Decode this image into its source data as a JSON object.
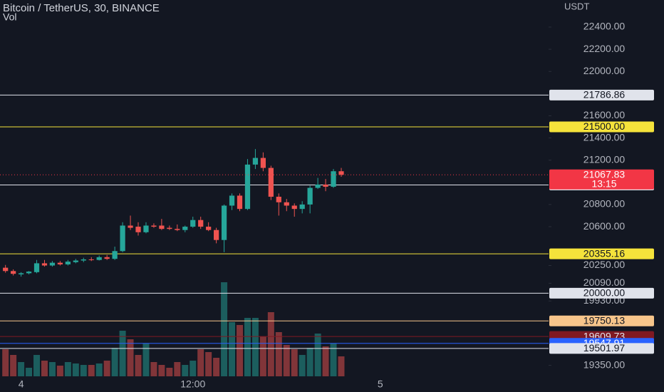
{
  "chart_data": {
    "type": "candlestick",
    "title": "Bitcoin / TetherUS, 30, BINANCE",
    "volume_label": "Vol",
    "axis_unit": "USDT",
    "up_color": "#26a69a",
    "down_color": "#ef5350",
    "open": [
      20230,
      20200,
      20170,
      20180,
      20190,
      20270,
      20250,
      20275,
      20260,
      20280,
      20295,
      20305,
      20300,
      20325,
      20310,
      20380,
      20610,
      20600,
      20550,
      20610,
      20610,
      20590,
      20580,
      20570,
      20600,
      20660,
      20600,
      20570,
      20480,
      20790,
      20880,
      20760,
      21160,
      21220,
      21130,
      20870,
      20820,
      20790,
      20760,
      20800,
      20950,
      20980,
      20960,
      21100
    ],
    "high": [
      20255,
      20215,
      20190,
      20200,
      20300,
      20300,
      20290,
      20290,
      20300,
      20310,
      20320,
      20325,
      20340,
      20345,
      20420,
      20640,
      20700,
      20640,
      20640,
      20630,
      20670,
      20610,
      20620,
      20610,
      20690,
      20690,
      20640,
      20590,
      20800,
      20900,
      20900,
      21210,
      21300,
      21270,
      21150,
      20900,
      20850,
      20810,
      20830,
      20970,
      21040,
      21030,
      21120,
      21130
    ],
    "low": [
      20185,
      20160,
      20150,
      20170,
      20180,
      20240,
      20240,
      20250,
      20250,
      20270,
      20280,
      20290,
      20295,
      20300,
      20300,
      20370,
      20570,
      20520,
      20540,
      20590,
      20570,
      20570,
      20560,
      20550,
      20590,
      20580,
      20560,
      20450,
      20370,
      20750,
      20740,
      20750,
      21120,
      21100,
      20840,
      20700,
      20740,
      20690,
      20720,
      20720,
      20940,
      20920,
      20950,
      21050
    ],
    "close": [
      20200,
      20175,
      20180,
      20195,
      20270,
      20250,
      20275,
      20260,
      20285,
      20295,
      20305,
      20300,
      20325,
      20310,
      20380,
      20610,
      20590,
      20550,
      20610,
      20600,
      20580,
      20580,
      20570,
      20600,
      20660,
      20600,
      20570,
      20480,
      20790,
      20880,
      20760,
      21160,
      21220,
      21130,
      20870,
      20820,
      20790,
      20760,
      20800,
      20950,
      20980,
      20960,
      21100,
      21067.83
    ],
    "volume": [
      38,
      30,
      20,
      12,
      30,
      22,
      20,
      15,
      20,
      18,
      16,
      16,
      18,
      22,
      40,
      64,
      52,
      30,
      46,
      20,
      16,
      12,
      20,
      16,
      22,
      38,
      34,
      26,
      132,
      76,
      72,
      82,
      82,
      56,
      90,
      62,
      44,
      38,
      30,
      40,
      60,
      42,
      46,
      28
    ],
    "xlim": [
      -0.7,
      69.55
    ],
    "xticks": [
      {
        "value": 2,
        "label": "4"
      },
      {
        "value": 24,
        "label": "12:00"
      },
      {
        "value": 48,
        "label": "5"
      }
    ],
    "ylim": [
      19225,
      22644
    ],
    "yticks": [
      {
        "value": 22400,
        "label": "22400.00"
      },
      {
        "value": 22200,
        "label": "22200.00"
      },
      {
        "value": 22000,
        "label": "22000.00"
      },
      {
        "value": 21600,
        "label": "21600.00"
      },
      {
        "value": 21400,
        "label": "21400.00"
      },
      {
        "value": 21200,
        "label": "21200.00"
      },
      {
        "value": 20800,
        "label": "20800.00"
      },
      {
        "value": 20600,
        "label": "20600.00"
      },
      {
        "value": 20250,
        "label": "20250.00"
      },
      {
        "value": 20090,
        "label": "20090.00"
      },
      {
        "value": 19930,
        "label": "19930.00"
      },
      {
        "value": 19350,
        "label": "19350.00"
      }
    ],
    "price_lines": [
      {
        "value": 21786.86,
        "label": "21786.86",
        "color": "#e0e3eb",
        "text_color": "#131722"
      },
      {
        "value": 21500,
        "label": "21500.00",
        "color": "#f5e33b",
        "text_color": "#131722"
      },
      {
        "value": 20976.36,
        "label": "20976.36",
        "color": "#e0e3eb",
        "text_color": "#131722"
      },
      {
        "value": 20355.16,
        "label": "20355.16",
        "color": "#f5e33b",
        "text_color": "#131722"
      },
      {
        "value": 20000,
        "label": "20000.00",
        "color": "#e0e3eb",
        "text_color": "#131722"
      },
      {
        "value": 19750.13,
        "label": "19750.13",
        "color": "#f7c58b",
        "text_color": "#131722"
      },
      {
        "value": 19609.73,
        "label": "19609.73",
        "color": "#801922",
        "text_color": "#e0e3eb"
      },
      {
        "value": 19547.91,
        "label": "19547.91",
        "color": "#2962ff",
        "text_color": "#ffffff"
      },
      {
        "value": 19501.97,
        "label": "19501.97",
        "color": "#e0e3eb",
        "text_color": "#131722"
      }
    ],
    "last_price": {
      "value": 21067.83,
      "label": "21067.83",
      "countdown": "13:15",
      "color": "#f23645"
    }
  }
}
